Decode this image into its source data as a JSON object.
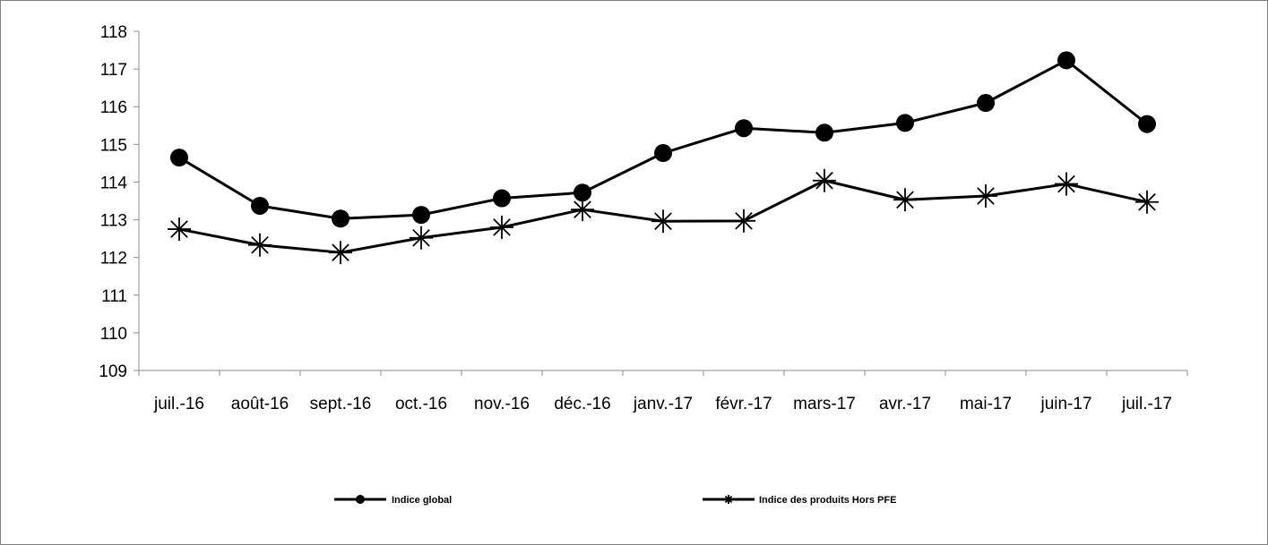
{
  "chart_data": {
    "type": "line",
    "categories": [
      "juil.-16",
      "août-16",
      "sept.-16",
      "oct.-16",
      "nov.-16",
      "déc.-16",
      "janv.-17",
      "févr.-17",
      "mars-17",
      "avr.-17",
      "mai-17",
      "juin-17",
      "juil.-17"
    ],
    "series": [
      {
        "name": "Indice global",
        "marker": "circle",
        "values": [
          114.65,
          113.37,
          113.03,
          113.13,
          113.57,
          113.72,
          114.77,
          115.43,
          115.31,
          115.57,
          116.1,
          117.23,
          115.54
        ]
      },
      {
        "name": "Indice des produits Hors PFE",
        "marker": "star",
        "values": [
          112.75,
          112.33,
          112.13,
          112.52,
          112.8,
          113.27,
          112.96,
          112.97,
          114.04,
          113.53,
          113.63,
          113.95,
          113.47
        ]
      }
    ],
    "yticks": [
      "109",
      "110",
      "111",
      "112",
      "113",
      "114",
      "115",
      "116",
      "117",
      "118"
    ],
    "ylim": [
      109,
      118
    ],
    "line_color": "#000000",
    "grid": false,
    "legend_position": "bottom"
  }
}
